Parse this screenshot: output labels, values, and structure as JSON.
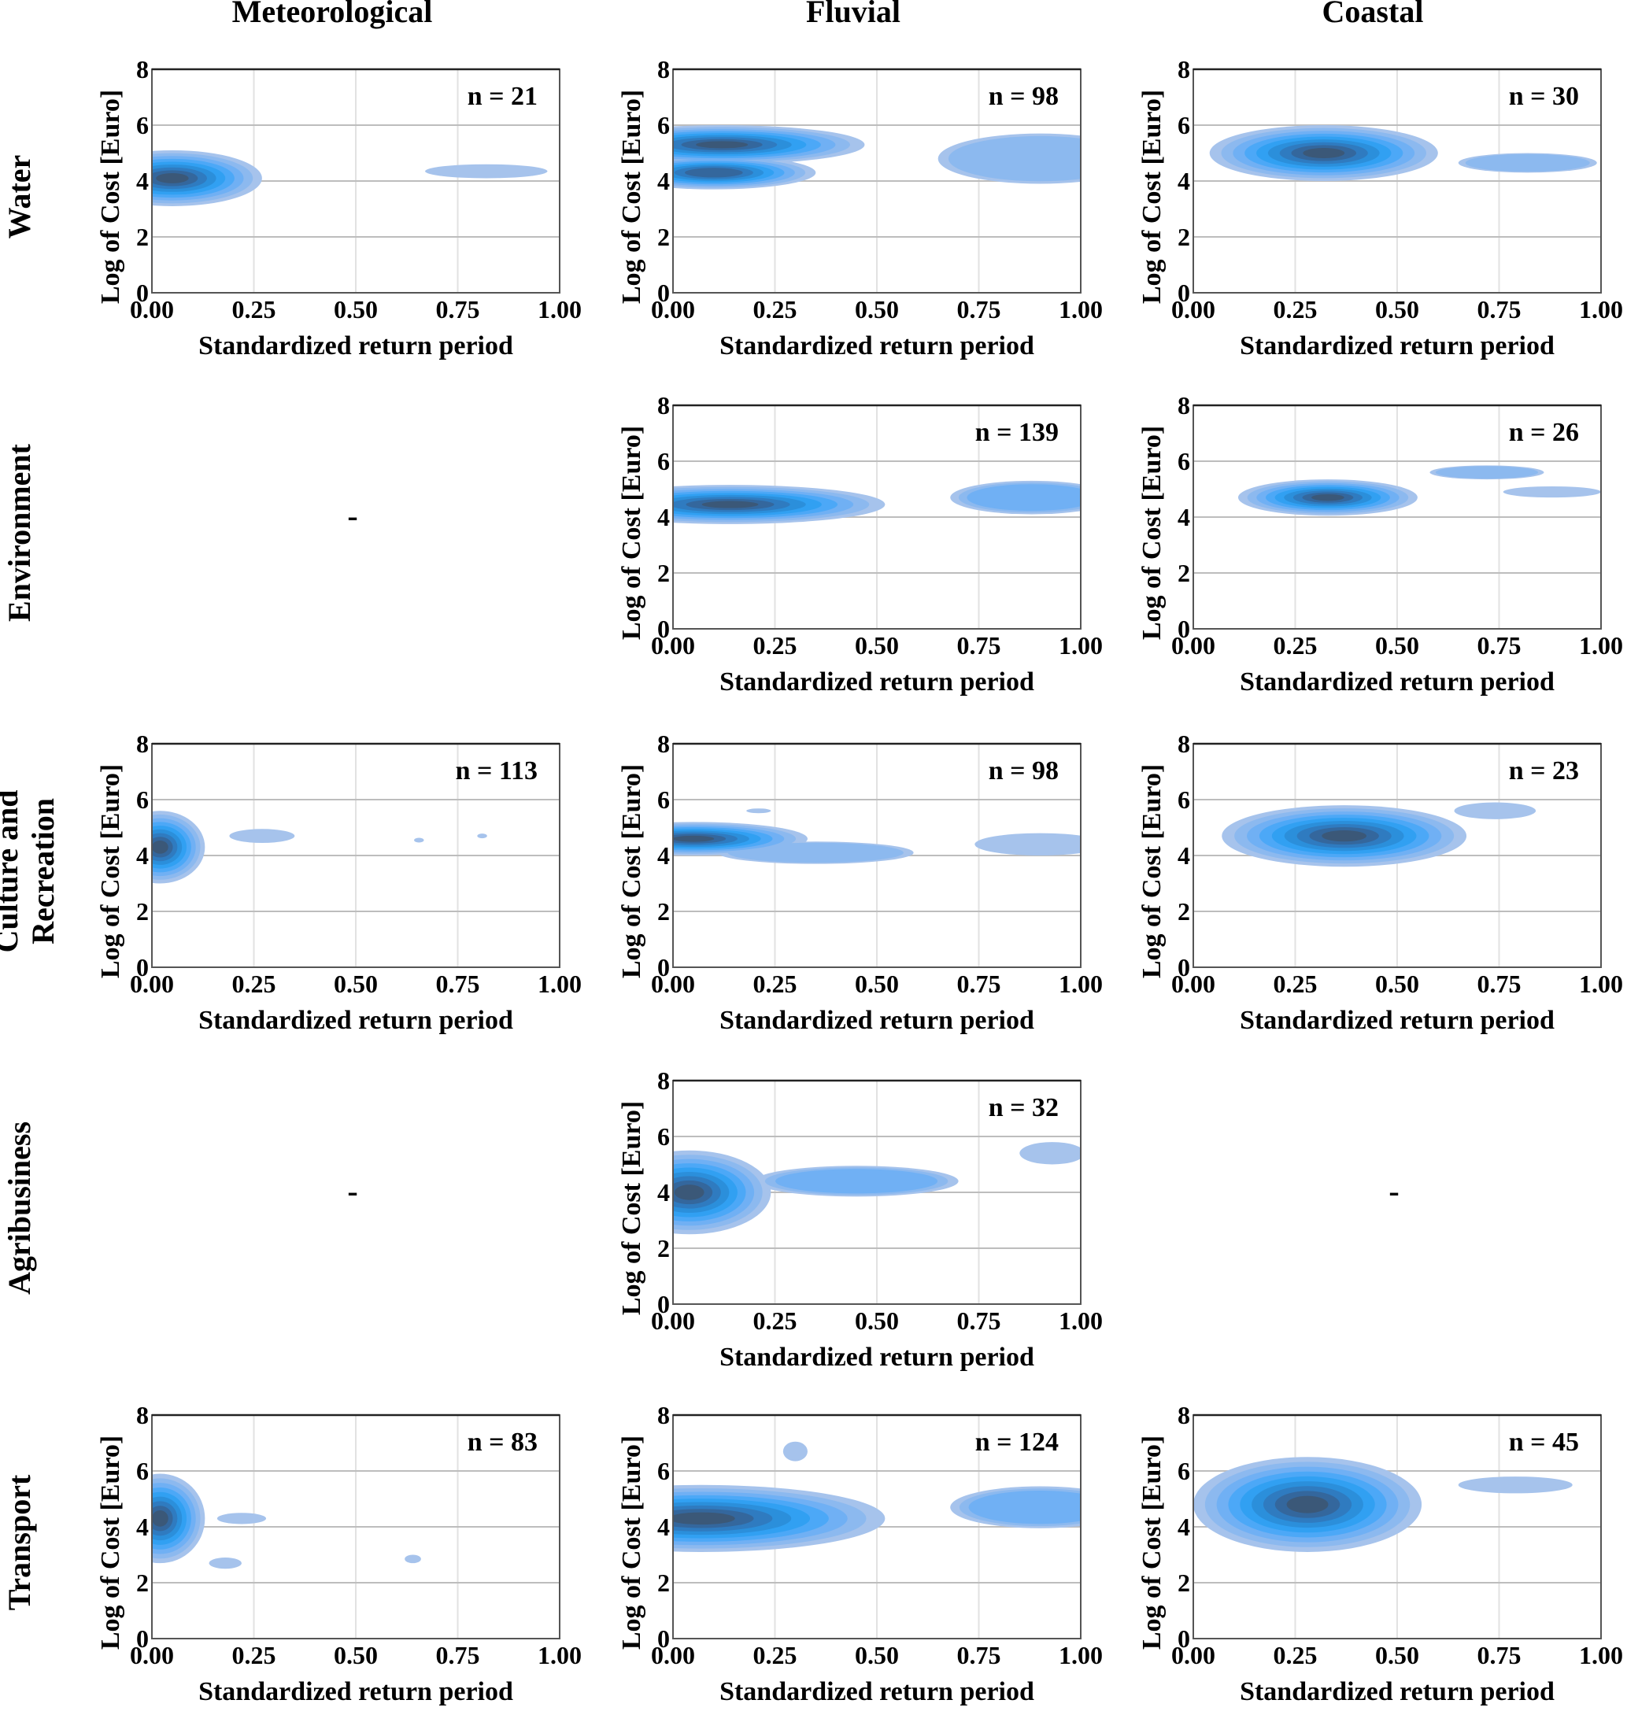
{
  "figure": {
    "column_titles": [
      "Meteorological",
      "Fluvial",
      "Coastal"
    ],
    "row_titles": [
      [
        "Water"
      ],
      [
        "Environment"
      ],
      [
        "Culture and",
        "Recreation"
      ],
      [
        "Agribusiness"
      ],
      [
        "Transport"
      ]
    ],
    "empty_marker": "-",
    "palette": [
      "#a6c3ec",
      "#8cb9ef",
      "#70b0f4",
      "#4ca8f7",
      "#31a0f2",
      "#2b8fdb",
      "#2f7bc0",
      "#34679d",
      "#3b5878"
    ]
  },
  "chart_data": {
    "type": "heatmap",
    "subtype": "bivariate kernel density (filled contours)",
    "xlabel": "Standardized return period",
    "ylabel": "Log of Cost [Euro]",
    "xlim": [
      0,
      1
    ],
    "ylim": [
      0,
      8
    ],
    "xticks": [
      "0.00",
      "0.25",
      "0.50",
      "0.75",
      "1.00"
    ],
    "yticks": [
      "0",
      "2",
      "4",
      "6",
      "8"
    ],
    "grid": true,
    "n_prefix": "n = ",
    "panels": [
      {
        "row": "Water",
        "col": "Meteorological",
        "n": 21,
        "blobs": [
          {
            "x": 0.05,
            "y": 4.1,
            "sx": 0.22,
            "sy": 1.0,
            "levels": 9
          },
          {
            "x": 0.82,
            "y": 4.35,
            "sx": 0.15,
            "sy": 0.25,
            "levels": 1
          }
        ]
      },
      {
        "row": "Water",
        "col": "Fluvial",
        "n": 98,
        "blobs": [
          {
            "x": 0.12,
            "y": 5.3,
            "sx": 0.35,
            "sy": 0.7,
            "levels": 9
          },
          {
            "x": 0.1,
            "y": 4.3,
            "sx": 0.25,
            "sy": 0.6,
            "levels": 8
          },
          {
            "x": 0.9,
            "y": 4.8,
            "sx": 0.25,
            "sy": 0.9,
            "levels": 2
          }
        ]
      },
      {
        "row": "Water",
        "col": "Coastal",
        "n": 30,
        "blobs": [
          {
            "x": 0.32,
            "y": 5.0,
            "sx": 0.28,
            "sy": 1.0,
            "levels": 9
          },
          {
            "x": 0.82,
            "y": 4.65,
            "sx": 0.17,
            "sy": 0.35,
            "levels": 2
          }
        ]
      },
      {
        "row": "Environment",
        "col": "Meteorological",
        "n": null,
        "blobs": []
      },
      {
        "row": "Environment",
        "col": "Fluvial",
        "n": 139,
        "blobs": [
          {
            "x": 0.14,
            "y": 4.45,
            "sx": 0.38,
            "sy": 0.7,
            "levels": 9
          },
          {
            "x": 0.88,
            "y": 4.7,
            "sx": 0.2,
            "sy": 0.6,
            "levels": 3
          }
        ]
      },
      {
        "row": "Environment",
        "col": "Coastal",
        "n": 26,
        "blobs": [
          {
            "x": 0.33,
            "y": 4.7,
            "sx": 0.22,
            "sy": 0.65,
            "levels": 9
          },
          {
            "x": 0.72,
            "y": 5.6,
            "sx": 0.14,
            "sy": 0.25,
            "levels": 2
          },
          {
            "x": 0.88,
            "y": 4.9,
            "sx": 0.12,
            "sy": 0.2,
            "levels": 1
          }
        ]
      },
      {
        "row": "Culture and Recreation",
        "col": "Meteorological",
        "n": 113,
        "blobs": [
          {
            "x": 0.02,
            "y": 4.3,
            "sx": 0.11,
            "sy": 1.3,
            "levels": 9
          },
          {
            "x": 0.27,
            "y": 4.7,
            "sx": 0.08,
            "sy": 0.25,
            "levels": 1
          },
          {
            "x": 0.655,
            "y": 4.55,
            "sx": 0.012,
            "sy": 0.08,
            "levels": 1
          },
          {
            "x": 0.81,
            "y": 4.7,
            "sx": 0.012,
            "sy": 0.08,
            "levels": 1
          }
        ]
      },
      {
        "row": "Culture and Recreation",
        "col": "Fluvial",
        "n": 98,
        "blobs": [
          {
            "x": 0.05,
            "y": 4.6,
            "sx": 0.28,
            "sy": 0.6,
            "levels": 9
          },
          {
            "x": 0.35,
            "y": 4.1,
            "sx": 0.24,
            "sy": 0.4,
            "levels": 2
          },
          {
            "x": 0.21,
            "y": 5.6,
            "sx": 0.03,
            "sy": 0.06,
            "levels": 1
          },
          {
            "x": 0.9,
            "y": 4.4,
            "sx": 0.16,
            "sy": 0.4,
            "levels": 1
          }
        ]
      },
      {
        "row": "Culture and Recreation",
        "col": "Coastal",
        "n": 23,
        "blobs": [
          {
            "x": 0.37,
            "y": 4.7,
            "sx": 0.3,
            "sy": 1.1,
            "levels": 9
          },
          {
            "x": 0.74,
            "y": 5.6,
            "sx": 0.1,
            "sy": 0.3,
            "levels": 1
          }
        ]
      },
      {
        "row": "Agribusiness",
        "col": "Meteorological",
        "n": null,
        "blobs": []
      },
      {
        "row": "Agribusiness",
        "col": "Fluvial",
        "n": 32,
        "blobs": [
          {
            "x": 0.04,
            "y": 4.0,
            "sx": 0.2,
            "sy": 1.5,
            "levels": 9
          },
          {
            "x": 0.45,
            "y": 4.4,
            "sx": 0.25,
            "sy": 0.55,
            "levels": 3
          },
          {
            "x": 0.93,
            "y": 5.4,
            "sx": 0.08,
            "sy": 0.4,
            "levels": 1
          }
        ]
      },
      {
        "row": "Agribusiness",
        "col": "Coastal",
        "n": null,
        "blobs": []
      },
      {
        "row": "Transport",
        "col": "Meteorological",
        "n": 83,
        "blobs": [
          {
            "x": 0.02,
            "y": 4.3,
            "sx": 0.11,
            "sy": 1.6,
            "levels": 9
          },
          {
            "x": 0.22,
            "y": 4.3,
            "sx": 0.06,
            "sy": 0.2,
            "levels": 1
          },
          {
            "x": 0.18,
            "y": 2.7,
            "sx": 0.04,
            "sy": 0.2,
            "levels": 1
          },
          {
            "x": 0.64,
            "y": 2.85,
            "sx": 0.02,
            "sy": 0.15,
            "levels": 1
          }
        ]
      },
      {
        "row": "Transport",
        "col": "Fluvial",
        "n": 124,
        "blobs": [
          {
            "x": 0.07,
            "y": 4.3,
            "sx": 0.45,
            "sy": 1.2,
            "levels": 9
          },
          {
            "x": 0.9,
            "y": 4.7,
            "sx": 0.22,
            "sy": 0.75,
            "levels": 3
          },
          {
            "x": 0.3,
            "y": 6.7,
            "sx": 0.03,
            "sy": 0.35,
            "levels": 1
          }
        ]
      },
      {
        "row": "Transport",
        "col": "Coastal",
        "n": 45,
        "blobs": [
          {
            "x": 0.28,
            "y": 4.8,
            "sx": 0.28,
            "sy": 1.7,
            "levels": 9
          },
          {
            "x": 0.79,
            "y": 5.5,
            "sx": 0.14,
            "sy": 0.3,
            "levels": 1
          }
        ]
      }
    ]
  }
}
